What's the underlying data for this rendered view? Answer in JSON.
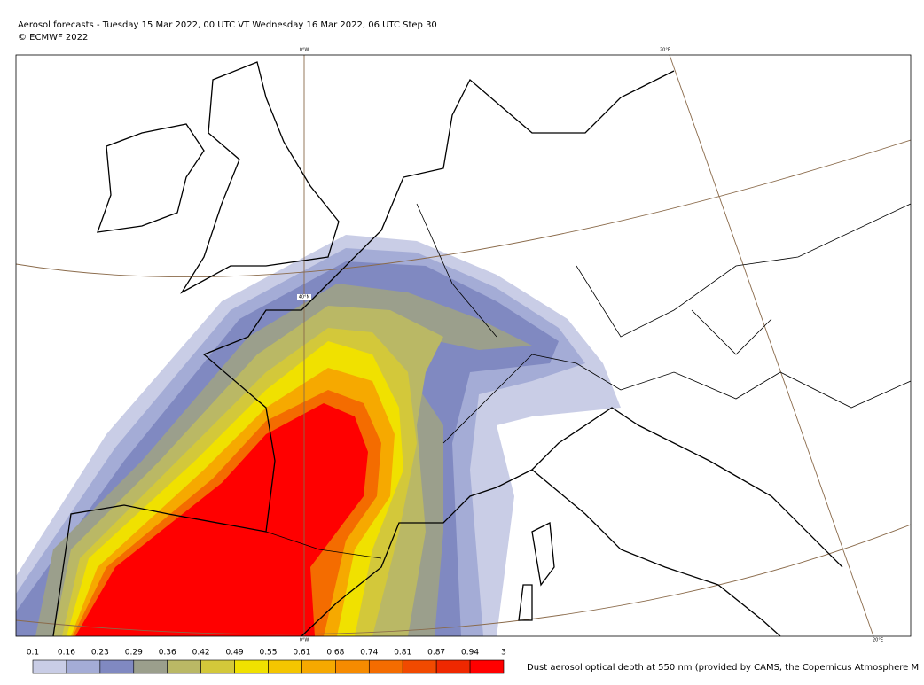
{
  "header": {
    "title": "Aerosol forecasts - Tuesday 15 Mar 2022, 00 UTC VT Wednesday 16 Mar 2022, 06 UTC Step 30",
    "copyright": "© ECMWF 2022"
  },
  "graticule_labels": [
    "0°W",
    "20°E",
    "40°N",
    "0°W",
    "20°E"
  ],
  "colorbar": {
    "ticks": [
      0.1,
      0.16,
      0.23,
      0.29,
      0.36,
      0.42,
      0.49,
      0.55,
      0.61,
      0.68,
      0.74,
      0.81,
      0.87,
      0.94,
      3
    ],
    "colors": [
      "#c9cde6",
      "#a4acd6",
      "#8089c1",
      "#9b9f8c",
      "#bab865",
      "#d3c83a",
      "#f0e100",
      "#f4c600",
      "#f6a900",
      "#f68b00",
      "#f46c00",
      "#f14a00",
      "#ef2800",
      "#ff0000"
    ],
    "caption": "Dust aerosol optical depth at 550 nm (provided by CAMS, the Copernicus Atmosphere M"
  }
}
